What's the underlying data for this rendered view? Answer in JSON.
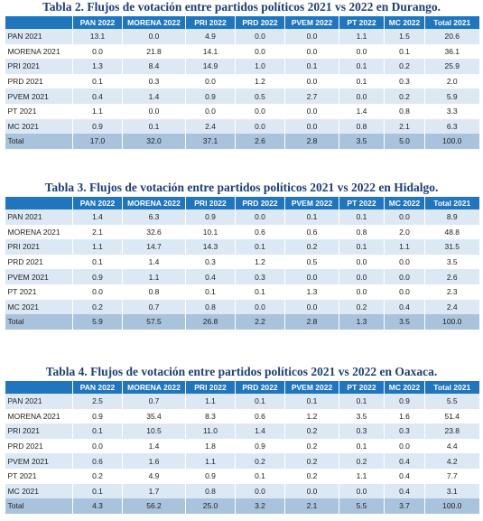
{
  "tables": [
    {
      "title": "Tabla 2. Flujos de votación entre partidos políticos 2021 vs 2022 en Durango.",
      "columns": [
        "PAN 2022",
        "MORENA 2022",
        "PRI 2022",
        "PRD 2022",
        "PVEM 2022",
        "PT 2022",
        "MC 2022",
        "Total 2021"
      ],
      "rows": [
        {
          "label": "PAN 2021",
          "values": [
            "13.1",
            "0.0",
            "4.9",
            "0.0",
            "0.0",
            "1.1",
            "1.5",
            "20.6"
          ]
        },
        {
          "label": "MORENA 2021",
          "values": [
            "0.0",
            "21.8",
            "14.1",
            "0.0",
            "0.0",
            "0.0",
            "0.1",
            "36.1"
          ]
        },
        {
          "label": "PRI 2021",
          "values": [
            "1.3",
            "8.4",
            "14.9",
            "1.0",
            "0.1",
            "0.1",
            "0.2",
            "25.9"
          ]
        },
        {
          "label": "PRD 2021",
          "values": [
            "0.1",
            "0.3",
            "0.0",
            "1.2",
            "0.0",
            "0.1",
            "0.3",
            "2.0"
          ]
        },
        {
          "label": "PVEM 2021",
          "values": [
            "0.4",
            "1.4",
            "0.9",
            "0.5",
            "2.7",
            "0.0",
            "0.2",
            "5.9"
          ]
        },
        {
          "label": "PT 2021",
          "values": [
            "1.1",
            "0.0",
            "0.0",
            "0.0",
            "0.0",
            "1.4",
            "0.8",
            "3.3"
          ]
        },
        {
          "label": "MC 2021",
          "values": [
            "0.9",
            "0.1",
            "2.4",
            "0.0",
            "0.0",
            "0.8",
            "2.1",
            "6.3"
          ]
        },
        {
          "label": "Total",
          "values": [
            "17.0",
            "32.0",
            "37.1",
            "2.6",
            "2.8",
            "3.5",
            "5.0",
            "100.0"
          ]
        }
      ]
    },
    {
      "title": "Tabla 3. Flujos de votación entre partidos políticos 2021 vs 2022 en Hidalgo.",
      "columns": [
        "PAN 2022",
        "MORENA 2022",
        "PRI 2022",
        "PRD 2022",
        "PVEM 2022",
        "PT 2022",
        "MC 2022",
        "Total 2021"
      ],
      "rows": [
        {
          "label": "PAN 2021",
          "values": [
            "1.4",
            "6.3",
            "0.9",
            "0.0",
            "0.1",
            "0.1",
            "0.0",
            "8.9"
          ]
        },
        {
          "label": "MORENA 2021",
          "values": [
            "2.1",
            "32.6",
            "10.1",
            "0.6",
            "0.6",
            "0.8",
            "2.0",
            "48.8"
          ]
        },
        {
          "label": "PRI 2021",
          "values": [
            "1.1",
            "14.7",
            "14.3",
            "0.1",
            "0.2",
            "0.1",
            "1.1",
            "31.5"
          ]
        },
        {
          "label": "PRD 2021",
          "values": [
            "0.1",
            "1.4",
            "0.3",
            "1.2",
            "0.5",
            "0.0",
            "0.0",
            "3.5"
          ]
        },
        {
          "label": "PVEM 2021",
          "values": [
            "0.9",
            "1.1",
            "0.4",
            "0.3",
            "0.0",
            "0.0",
            "0.0",
            "2.6"
          ]
        },
        {
          "label": "PT 2021",
          "values": [
            "0.0",
            "0.8",
            "0.1",
            "0.1",
            "1.3",
            "0.0",
            "0.0",
            "2.3"
          ]
        },
        {
          "label": "MC 2021",
          "values": [
            "0.2",
            "0.7",
            "0.8",
            "0.0",
            "0.0",
            "0.2",
            "0.4",
            "2.4"
          ]
        },
        {
          "label": "Total",
          "values": [
            "5.9",
            "57.5",
            "26.8",
            "2.2",
            "2.8",
            "1.3",
            "3.5",
            "100.0"
          ]
        }
      ]
    },
    {
      "title": "Tabla 4. Flujos de votación entre partidos políticos 2021 vs 2022 en Oaxaca.",
      "columns": [
        "PAN 2022",
        "MORENA 2022",
        "PRI 2022",
        "PRD 2022",
        "PVEM 2022",
        "PT 2022",
        "MC 2022",
        "Total 2021"
      ],
      "rows": [
        {
          "label": "PAN 2021",
          "values": [
            "2.5",
            "0.7",
            "1.1",
            "0.1",
            "0.1",
            "0.1",
            "0.9",
            "5.5"
          ]
        },
        {
          "label": "MORENA 2021",
          "values": [
            "0.9",
            "35.4",
            "8.3",
            "0.6",
            "1.2",
            "3.5",
            "1.6",
            "51.4"
          ]
        },
        {
          "label": "PRI 2021",
          "values": [
            "0.1",
            "10.5",
            "11.0",
            "1.4",
            "0.2",
            "0.3",
            "0.3",
            "23.8"
          ]
        },
        {
          "label": "PRD 2021",
          "values": [
            "0.0",
            "1.4",
            "1.8",
            "0.9",
            "0.2",
            "0.1",
            "0.0",
            "4.4"
          ]
        },
        {
          "label": "PVEM 2021",
          "values": [
            "0.6",
            "1.6",
            "1.1",
            "0.2",
            "0.2",
            "0.2",
            "0.4",
            "4.2"
          ]
        },
        {
          "label": "PT 2021",
          "values": [
            "0.2",
            "4.9",
            "0.9",
            "0.1",
            "0.2",
            "1.1",
            "0.4",
            "7.7"
          ]
        },
        {
          "label": "MC 2021",
          "values": [
            "0.1",
            "1.7",
            "0.8",
            "0.0",
            "0.0",
            "0.0",
            "0.4",
            "3.1"
          ]
        },
        {
          "label": "Total",
          "values": [
            "4.3",
            "56.2",
            "25.0",
            "3.2",
            "2.1",
            "5.5",
            "3.7",
            "100.0"
          ]
        }
      ]
    }
  ]
}
